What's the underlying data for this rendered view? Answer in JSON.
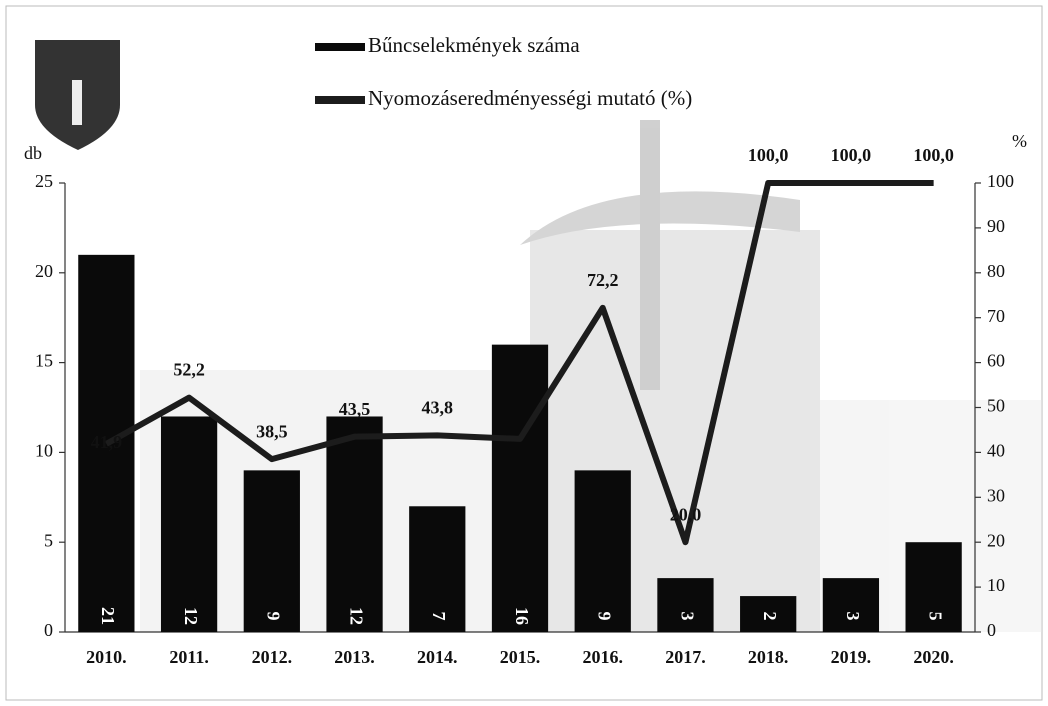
{
  "chart_data": {
    "type": "bar_line",
    "categories": [
      "2010.",
      "2011.",
      "2012.",
      "2013.",
      "2014.",
      "2015.",
      "2016.",
      "2017.",
      "2018.",
      "2019.",
      "2020."
    ],
    "y_label": "db",
    "y2_label": "%",
    "ylim": [
      0,
      25
    ],
    "yticks": [
      0,
      5,
      10,
      15,
      20,
      25
    ],
    "y2lim": [
      0,
      100
    ],
    "y2ticks": [
      0,
      10,
      20,
      30,
      40,
      50,
      60,
      70,
      80,
      90,
      100
    ],
    "series": [
      {
        "name": "Bűncselekmények száma",
        "type": "bar",
        "color": "#0a0a0a",
        "values": [
          21,
          12,
          9,
          12,
          7,
          16,
          9,
          3,
          2,
          3,
          5
        ]
      },
      {
        "name": "Nyomozáseredményességi mutató (%)",
        "type": "line",
        "axis": "y2",
        "color": "#1c1c1c",
        "values": [
          41.9,
          52.2,
          38.5,
          43.5,
          43.8,
          43,
          72.2,
          20.0,
          100.0,
          100.0,
          100.0
        ],
        "value_labels": [
          "41,9",
          "52,2",
          "38,5",
          "43,5",
          "43,8",
          null,
          "72,2",
          "20,0",
          "100,0",
          "100,0",
          "100,0"
        ]
      }
    ]
  }
}
